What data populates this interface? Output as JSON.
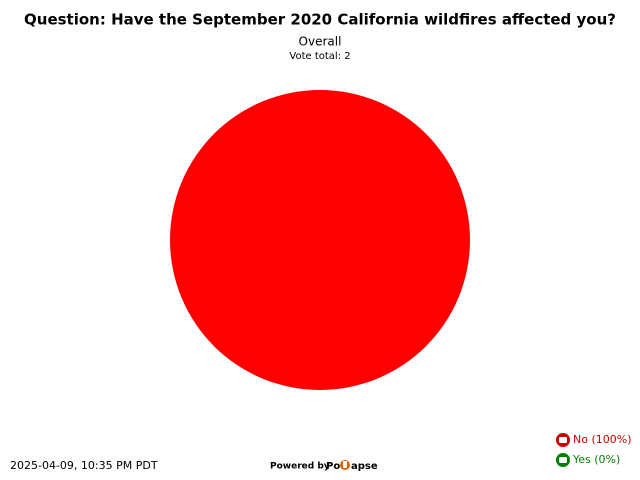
{
  "chart_data": {
    "type": "pie",
    "title": "Question: Have the September 2020 California wildfires affected you?",
    "subtitle": "Overall",
    "note": "Vote total: 2",
    "categories": [
      "No (100%)",
      "Yes (0%)"
    ],
    "values": [
      100,
      0
    ],
    "colors": [
      "#ff0000",
      "#00a000"
    ],
    "legend_colors": [
      "#cc0000",
      "#008000"
    ],
    "legend": "bottom-right"
  },
  "footer": {
    "timestamp": "2025-04-09, 10:35 PM PDT",
    "powered_by": "Powered by",
    "brand_start": "Po",
    "brand_end": "apse"
  }
}
